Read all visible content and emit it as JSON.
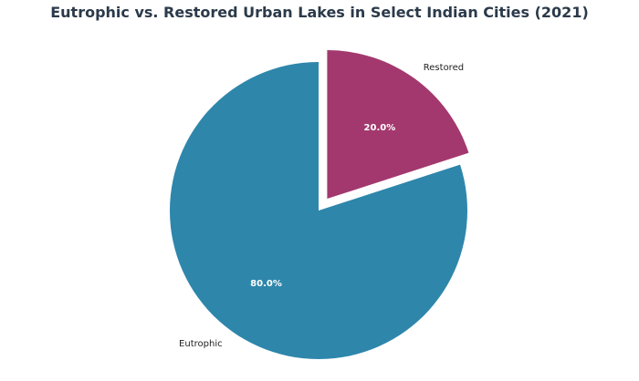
{
  "chart_data": {
    "type": "pie",
    "title": "Eutrophic vs. Restored Urban Lakes in Select Indian Cities (2021)",
    "categories": [
      "Restored",
      "Eutrophic"
    ],
    "values": [
      20.0,
      80.0
    ],
    "percent_labels": [
      "20.0%",
      "80.0%"
    ],
    "colors": [
      "#a3386e",
      "#2e86ab"
    ],
    "exploded": [
      "Restored"
    ],
    "start": "top",
    "direction": "clockwise",
    "legend": "none"
  },
  "colors": {
    "title": "#2b3a4a",
    "label": "#222222",
    "pct_label": "#ffffff",
    "background": "#ffffff"
  }
}
